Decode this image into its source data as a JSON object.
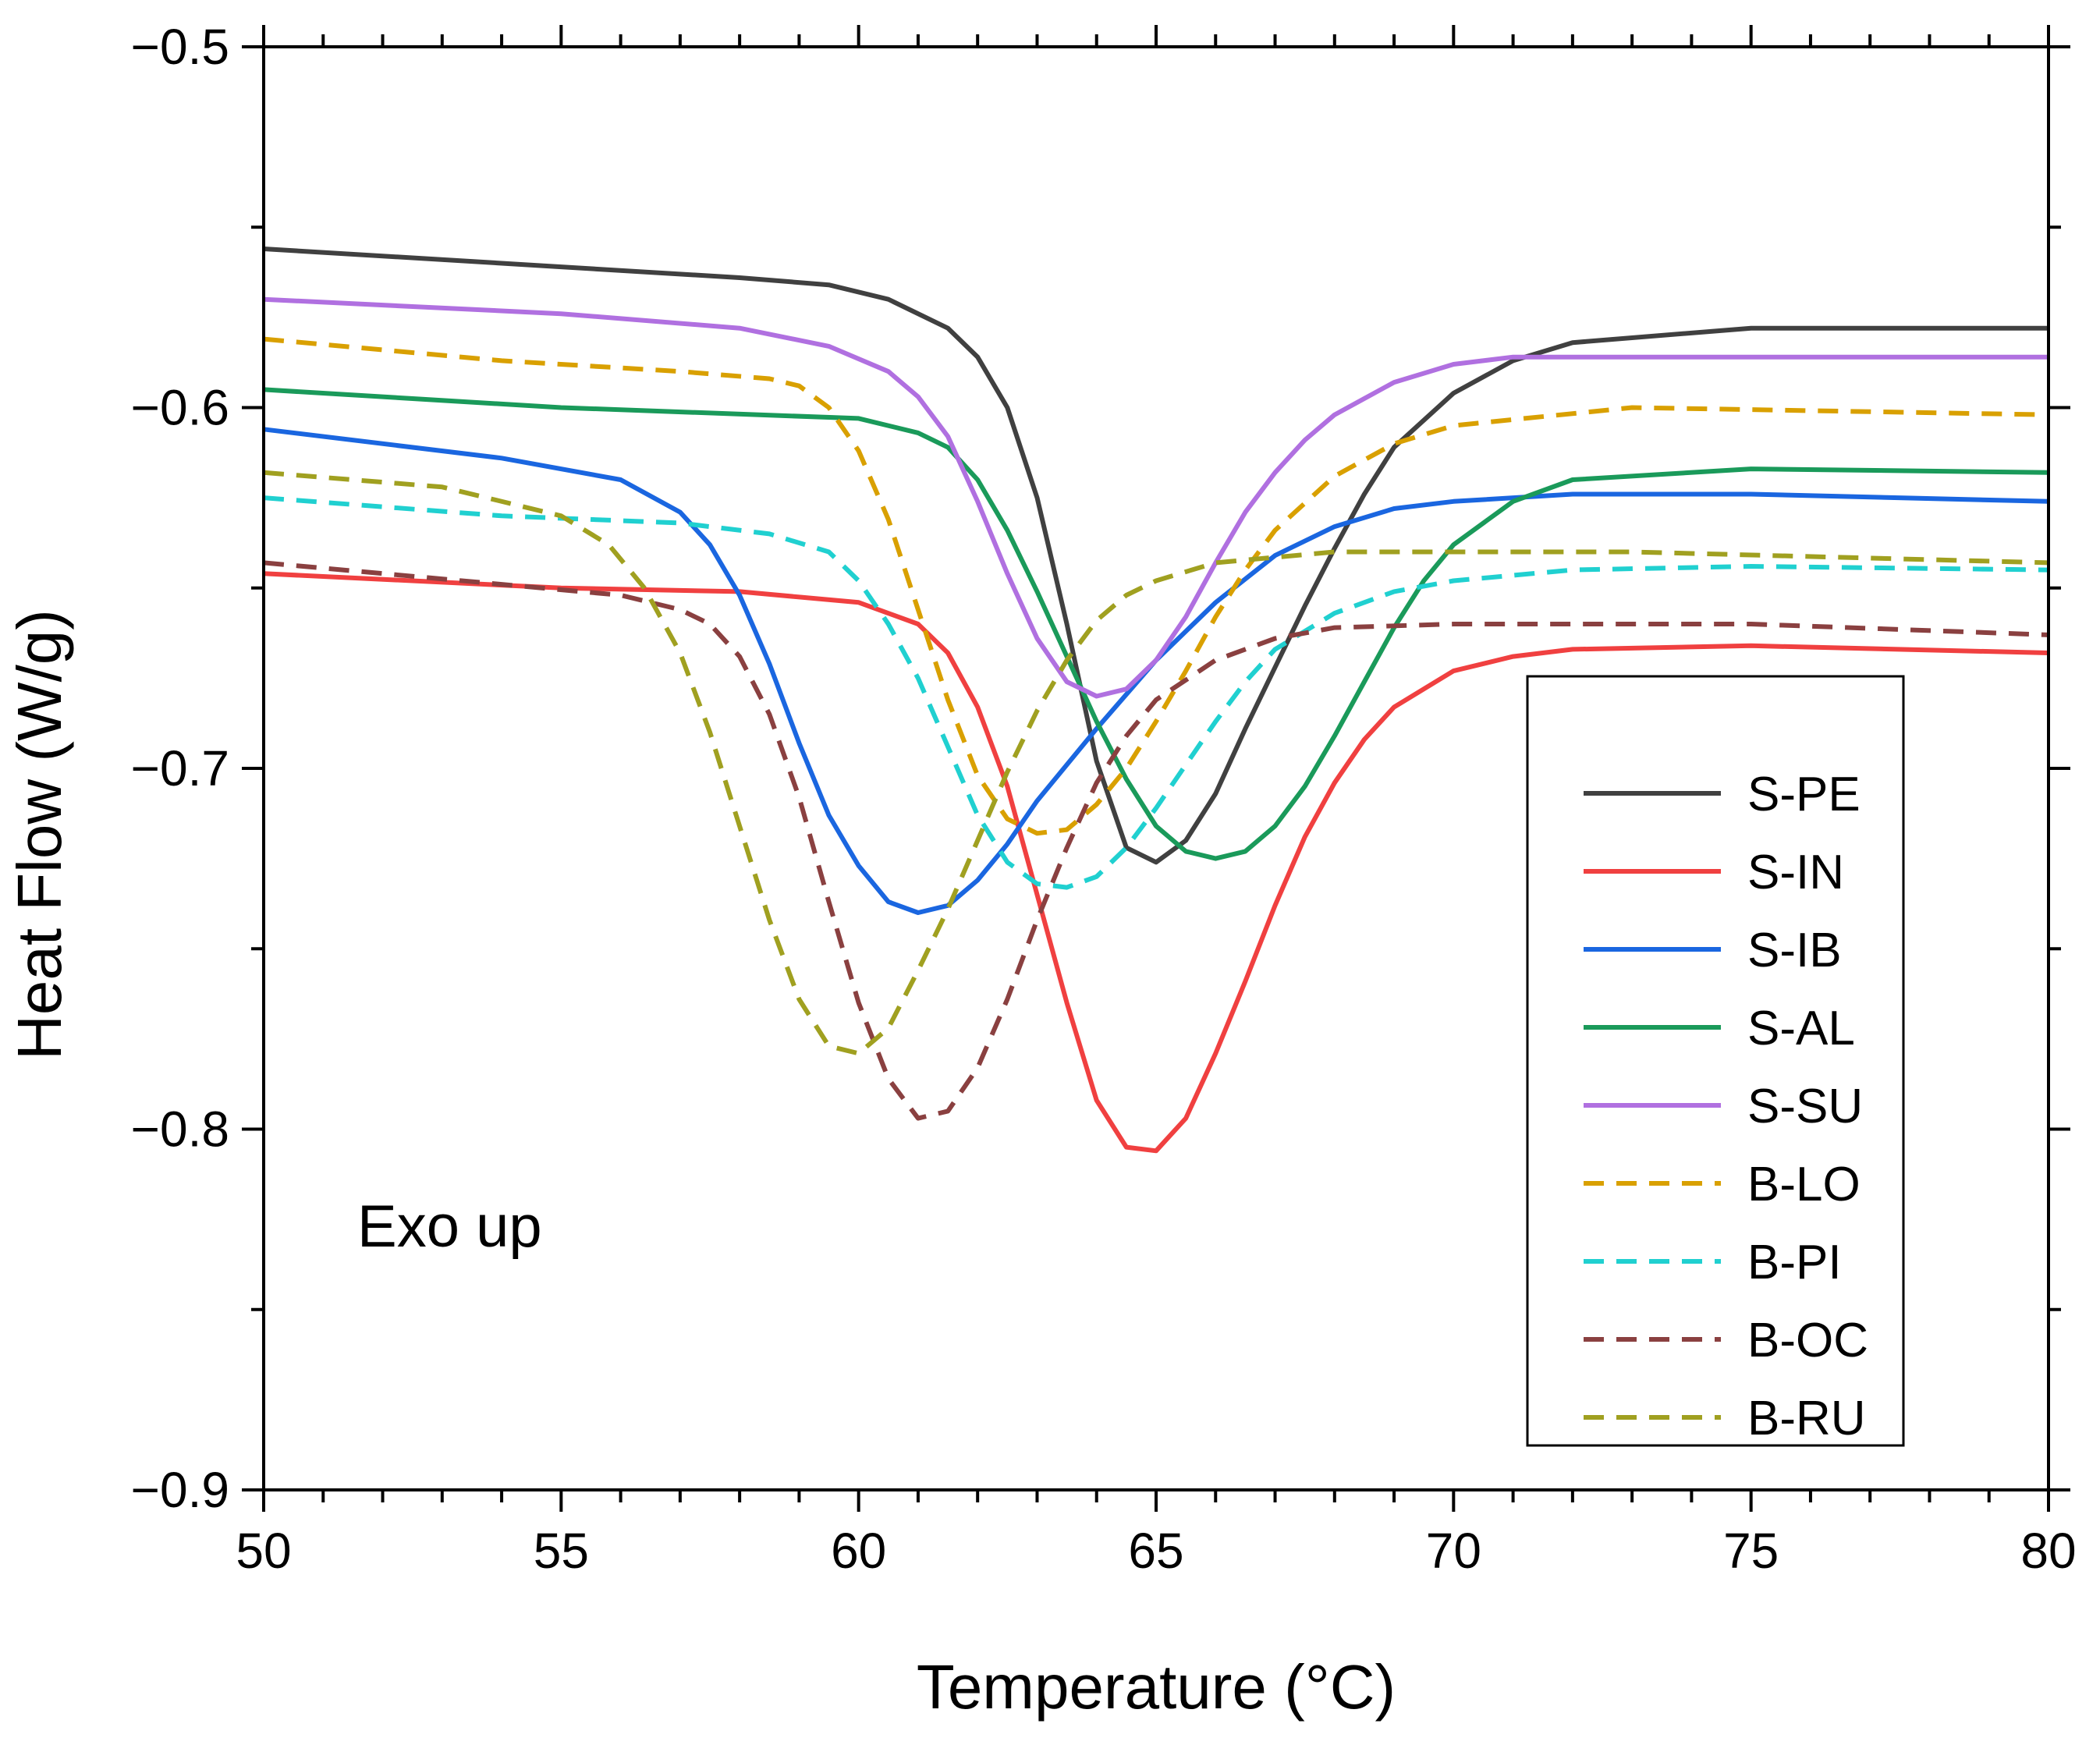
{
  "chart_data": {
    "type": "line",
    "title": "",
    "xlabel": "Temperature (°C)",
    "ylabel": "Heat Flow (W/g)",
    "xlim": [
      50,
      80
    ],
    "ylim": [
      -0.9,
      -0.5
    ],
    "x_ticks": [
      50,
      55,
      60,
      65,
      70,
      75,
      80
    ],
    "x_tick_labels": [
      "50",
      "55",
      "60",
      "65",
      "70",
      "75",
      "80"
    ],
    "y_ticks": [
      -0.5,
      -0.6,
      -0.7,
      -0.8,
      -0.9
    ],
    "y_tick_labels": [
      "−0.5",
      "−0.6",
      "−0.7",
      "−0.8",
      "−0.9"
    ],
    "grid": false,
    "legend_position": "right",
    "annotation": "Exo up",
    "series": [
      {
        "name": "S-PE",
        "color": "#404040",
        "dash": "solid",
        "x": [
          50,
          55,
          58,
          59.5,
          60.5,
          61.5,
          62,
          62.5,
          63,
          63.5,
          64,
          64.5,
          65,
          65.5,
          66,
          66.5,
          67,
          67.5,
          68,
          68.5,
          69,
          70,
          71,
          72,
          75,
          80
        ],
        "y": [
          -0.556,
          -0.561,
          -0.564,
          -0.566,
          -0.57,
          -0.578,
          -0.586,
          -0.6,
          -0.625,
          -0.66,
          -0.698,
          -0.722,
          -0.726,
          -0.72,
          -0.707,
          -0.689,
          -0.672,
          -0.655,
          -0.639,
          -0.624,
          -0.611,
          -0.596,
          -0.587,
          -0.582,
          -0.578,
          -0.578
        ]
      },
      {
        "name": "S-IN",
        "color": "#f04040",
        "dash": "solid",
        "x": [
          50,
          55,
          58,
          60,
          61,
          61.5,
          62,
          62.5,
          63,
          63.5,
          64,
          64.5,
          65,
          65.5,
          66,
          66.5,
          67,
          67.5,
          68,
          68.5,
          69,
          70,
          71,
          72,
          75,
          80
        ],
        "y": [
          -0.646,
          -0.65,
          -0.651,
          -0.654,
          -0.66,
          -0.668,
          -0.683,
          -0.705,
          -0.735,
          -0.765,
          -0.792,
          -0.805,
          -0.806,
          -0.797,
          -0.779,
          -0.759,
          -0.738,
          -0.719,
          -0.704,
          -0.692,
          -0.683,
          -0.673,
          -0.669,
          -0.667,
          -0.666,
          -0.668
        ]
      },
      {
        "name": "S-IB",
        "color": "#1a66e0",
        "dash": "solid",
        "x": [
          50,
          54,
          56,
          57,
          57.5,
          58,
          58.5,
          59,
          59.5,
          60,
          60.5,
          61,
          61.5,
          62,
          62.5,
          63,
          64,
          65,
          66,
          67,
          68,
          69,
          70,
          72,
          75,
          80
        ],
        "y": [
          -0.606,
          -0.614,
          -0.62,
          -0.629,
          -0.638,
          -0.652,
          -0.671,
          -0.693,
          -0.713,
          -0.727,
          -0.737,
          -0.74,
          -0.738,
          -0.731,
          -0.721,
          -0.709,
          -0.689,
          -0.67,
          -0.654,
          -0.641,
          -0.633,
          -0.628,
          -0.626,
          -0.624,
          -0.624,
          -0.626
        ]
      },
      {
        "name": "S-AL",
        "color": "#1a9a5a",
        "dash": "solid",
        "x": [
          50,
          55,
          60,
          61,
          61.5,
          62,
          62.5,
          63,
          63.5,
          64,
          64.5,
          65,
          65.5,
          66,
          66.5,
          67,
          67.5,
          68,
          68.5,
          69,
          69.5,
          70,
          71,
          72,
          75,
          80
        ],
        "y": [
          -0.595,
          -0.6,
          -0.603,
          -0.607,
          -0.611,
          -0.62,
          -0.634,
          -0.651,
          -0.669,
          -0.687,
          -0.703,
          -0.716,
          -0.723,
          -0.725,
          -0.723,
          -0.716,
          -0.705,
          -0.691,
          -0.676,
          -0.661,
          -0.648,
          -0.638,
          -0.626,
          -0.62,
          -0.617,
          -0.618
        ]
      },
      {
        "name": "S-SU",
        "color": "#b070e0",
        "dash": "solid",
        "x": [
          50,
          55,
          58,
          59.5,
          60.5,
          61,
          61.5,
          62,
          62.5,
          63,
          63.5,
          64,
          64.5,
          65,
          65.5,
          66,
          66.5,
          67,
          67.5,
          68,
          69,
          70,
          71,
          72,
          75,
          80
        ],
        "y": [
          -0.57,
          -0.574,
          -0.578,
          -0.583,
          -0.59,
          -0.597,
          -0.608,
          -0.626,
          -0.646,
          -0.664,
          -0.676,
          -0.68,
          -0.678,
          -0.67,
          -0.658,
          -0.643,
          -0.629,
          -0.618,
          -0.609,
          -0.602,
          -0.593,
          -0.588,
          -0.586,
          -0.586,
          -0.586,
          -0.586
        ]
      },
      {
        "name": "B-LO",
        "color": "#d9a000",
        "dash": "dashed",
        "x": [
          50,
          54,
          57,
          58.5,
          59,
          59.5,
          60,
          60.5,
          61,
          61.5,
          62,
          62.5,
          63,
          63.5,
          64,
          64.5,
          65,
          65.5,
          66,
          66.5,
          67,
          68,
          69,
          70,
          73,
          80
        ],
        "y": [
          -0.581,
          -0.587,
          -0.59,
          -0.592,
          -0.594,
          -0.6,
          -0.612,
          -0.631,
          -0.656,
          -0.681,
          -0.702,
          -0.714,
          -0.718,
          -0.717,
          -0.71,
          -0.7,
          -0.687,
          -0.673,
          -0.658,
          -0.645,
          -0.634,
          -0.619,
          -0.61,
          -0.605,
          -0.6,
          -0.602
        ]
      },
      {
        "name": "B-PI",
        "color": "#20d0d0",
        "dash": "dashed",
        "x": [
          50,
          54,
          57,
          58.5,
          59.5,
          60,
          60.5,
          61,
          61.5,
          62,
          62.5,
          63,
          63.5,
          64,
          64.5,
          65,
          65.5,
          66,
          66.5,
          67,
          68,
          69,
          70,
          72,
          75,
          80
        ],
        "y": [
          -0.625,
          -0.63,
          -0.632,
          -0.635,
          -0.64,
          -0.648,
          -0.66,
          -0.675,
          -0.694,
          -0.713,
          -0.726,
          -0.732,
          -0.733,
          -0.73,
          -0.722,
          -0.711,
          -0.699,
          -0.687,
          -0.676,
          -0.667,
          -0.657,
          -0.651,
          -0.648,
          -0.645,
          -0.644,
          -0.645
        ]
      },
      {
        "name": "B-OC",
        "color": "#8a4040",
        "dash": "dashed",
        "x": [
          50,
          54,
          56,
          57,
          57.5,
          58,
          58.5,
          59,
          59.5,
          60,
          60.5,
          61,
          61.5,
          62,
          62.5,
          63,
          63.5,
          64,
          64.5,
          65,
          66,
          67,
          68,
          70,
          75,
          80
        ],
        "y": [
          -0.643,
          -0.649,
          -0.652,
          -0.656,
          -0.66,
          -0.669,
          -0.685,
          -0.708,
          -0.737,
          -0.765,
          -0.786,
          -0.797,
          -0.795,
          -0.783,
          -0.764,
          -0.742,
          -0.722,
          -0.704,
          -0.691,
          -0.681,
          -0.67,
          -0.664,
          -0.661,
          -0.66,
          -0.66,
          -0.663
        ]
      },
      {
        "name": "B-RU",
        "color": "#a0a020",
        "dash": "dashed",
        "x": [
          50,
          53,
          55,
          55.8,
          56.4,
          57,
          57.5,
          58,
          58.5,
          59,
          59.5,
          60,
          60.5,
          61,
          61.5,
          62,
          62.5,
          63,
          63.5,
          64,
          64.5,
          65,
          66,
          68,
          73,
          80
        ],
        "y": [
          -0.618,
          -0.622,
          -0.63,
          -0.638,
          -0.65,
          -0.668,
          -0.69,
          -0.716,
          -0.742,
          -0.764,
          -0.777,
          -0.779,
          -0.772,
          -0.756,
          -0.739,
          -0.72,
          -0.701,
          -0.684,
          -0.67,
          -0.659,
          -0.652,
          -0.648,
          -0.643,
          -0.64,
          -0.64,
          -0.643
        ]
      }
    ]
  }
}
